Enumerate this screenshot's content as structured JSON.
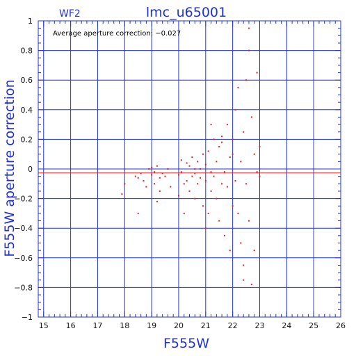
{
  "chart_data": {
    "type": "scatter",
    "title": "lmc_u65001",
    "chip_label": "WF2",
    "annotation": "Average aperture correction: −0.027",
    "xlabel": "F555W",
    "ylabel": "F555W aperture correction",
    "xlim": [
      14.8,
      26.0
    ],
    "ylim": [
      -1.0,
      1.0
    ],
    "xticks": [
      15,
      16,
      17,
      18,
      19,
      20,
      21,
      22,
      23,
      24,
      25,
      26
    ],
    "yticks": [
      -1,
      -0.8,
      -0.6,
      -0.4,
      -0.2,
      0,
      0.2,
      0.4,
      0.6,
      0.8,
      1
    ],
    "ytick_labels": [
      "−1",
      "−0.8",
      "−0.6",
      "−0.4",
      "−0.2",
      "0",
      "0.2",
      "0.4",
      "0.6",
      "0.8",
      "1"
    ],
    "grid": true,
    "reference_lines": [
      {
        "y": 0,
        "color": "#2233cc"
      },
      {
        "y": -0.027,
        "color": "#dd2222"
      }
    ],
    "colors": {
      "axis": "#2233cc",
      "points": "#dd2222",
      "ticks": "#111111"
    },
    "series": [
      {
        "values": [
          [
            17.9,
            -0.17
          ],
          [
            18.0,
            -0.1
          ],
          [
            18.4,
            -0.05
          ],
          [
            18.5,
            -0.06
          ],
          [
            18.5,
            -0.3
          ],
          [
            18.6,
            -0.03
          ],
          [
            18.7,
            -0.08
          ],
          [
            18.8,
            -0.12
          ],
          [
            18.9,
            0.0
          ],
          [
            19.0,
            0.01
          ],
          [
            19.0,
            -0.04
          ],
          [
            19.1,
            -0.02
          ],
          [
            19.1,
            -0.1
          ],
          [
            19.2,
            -0.22
          ],
          [
            19.2,
            0.02
          ],
          [
            19.3,
            -0.06
          ],
          [
            19.4,
            -0.03
          ],
          [
            19.5,
            -0.05
          ],
          [
            19.6,
            0.0
          ],
          [
            19.7,
            -0.12
          ],
          [
            20.0,
            -0.04
          ],
          [
            20.0,
            -0.18
          ],
          [
            20.1,
            -0.02
          ],
          [
            20.1,
            0.06
          ],
          [
            20.2,
            -0.1
          ],
          [
            20.3,
            0.04
          ],
          [
            20.3,
            -0.08
          ],
          [
            20.4,
            0.02
          ],
          [
            20.4,
            -0.15
          ],
          [
            20.5,
            -0.05
          ],
          [
            20.5,
            0.08
          ],
          [
            20.6,
            -0.2
          ],
          [
            20.6,
            -0.03
          ],
          [
            20.7,
            0.05
          ],
          [
            20.7,
            -0.1
          ],
          [
            20.8,
            0.0
          ],
          [
            20.8,
            -0.06
          ],
          [
            20.9,
            -0.25
          ],
          [
            20.9,
            0.1
          ],
          [
            21.0,
            -0.08
          ],
          [
            21.0,
            0.03
          ],
          [
            21.1,
            -0.3
          ],
          [
            21.1,
            0.12
          ],
          [
            21.2,
            -0.02
          ],
          [
            21.2,
            -0.15
          ],
          [
            21.3,
            0.2
          ],
          [
            21.3,
            -0.05
          ],
          [
            21.4,
            -0.2
          ],
          [
            21.4,
            0.05
          ],
          [
            21.5,
            -0.35
          ],
          [
            21.5,
            0.15
          ],
          [
            21.6,
            -0.1
          ],
          [
            21.6,
            0.22
          ],
          [
            21.7,
            -0.02
          ],
          [
            21.7,
            -0.45
          ],
          [
            21.8,
            0.3
          ],
          [
            21.8,
            -0.12
          ],
          [
            21.9,
            0.08
          ],
          [
            21.9,
            -0.55
          ],
          [
            22.0,
            0.2
          ],
          [
            22.0,
            -0.25
          ],
          [
            22.1,
            0.4
          ],
          [
            22.1,
            -0.08
          ],
          [
            22.2,
            0.55
          ],
          [
            22.2,
            -0.3
          ],
          [
            22.3,
            0.05
          ],
          [
            22.3,
            -0.5
          ],
          [
            22.4,
            0.25
          ],
          [
            22.4,
            -0.65
          ],
          [
            22.5,
            0.6
          ],
          [
            22.5,
            -0.1
          ],
          [
            22.6,
            0.8
          ],
          [
            22.6,
            -0.35
          ],
          [
            22.7,
            0.35
          ],
          [
            22.7,
            -0.78
          ],
          [
            22.8,
            0.1
          ],
          [
            22.8,
            -0.55
          ],
          [
            22.9,
            0.65
          ],
          [
            22.9,
            -0.02
          ],
          [
            23.0,
            -0.05
          ],
          [
            23.0,
            0.15
          ],
          [
            20.2,
            -0.3
          ],
          [
            21.0,
            -0.4
          ],
          [
            21.2,
            0.3
          ],
          [
            22.0,
            0.1
          ],
          [
            22.4,
            -0.75
          ],
          [
            22.6,
            0.95
          ],
          [
            21.6,
            0.18
          ],
          [
            20.6,
            0.0
          ],
          [
            19.3,
            -0.15
          ]
        ]
      }
    ]
  }
}
